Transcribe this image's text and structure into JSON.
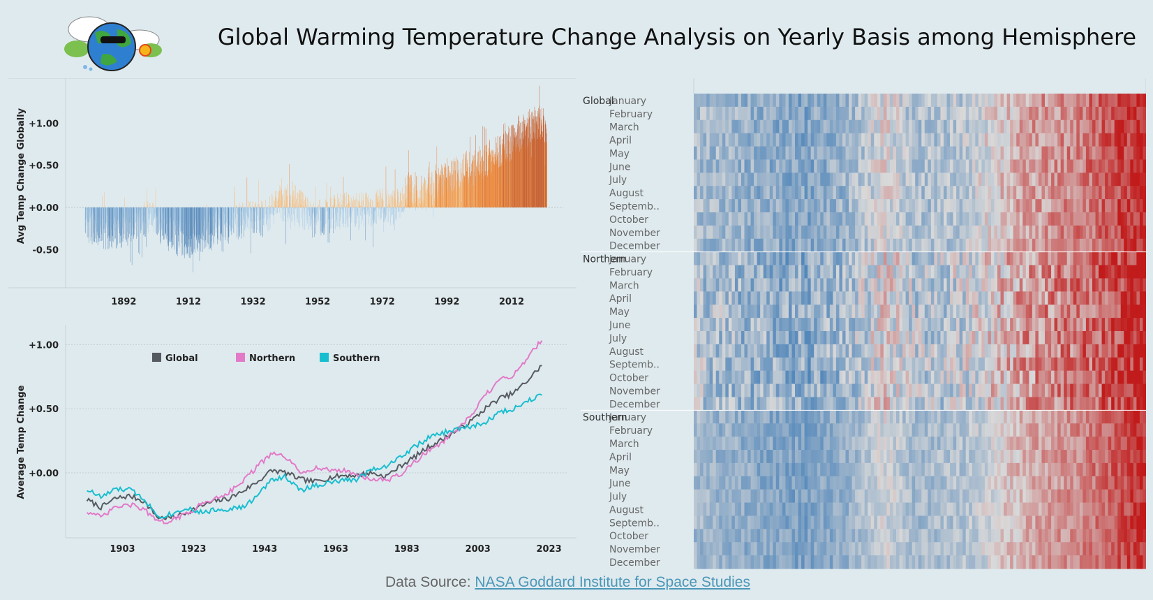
{
  "page": {
    "title": "Global Warming Temperature Change Analysis on Yearly Basis among Hemisphere",
    "footer_prefix": "Data Source: ",
    "footer_link": "NASA Goddard Institute for Space Studies"
  },
  "logo": {
    "icon": "earth-with-sunglasses-icon"
  },
  "chart_data": [
    {
      "id": "global-bars",
      "type": "bar",
      "ylabel": "Avg Temp Change Globally",
      "xlabel": "",
      "xlim": [
        1874,
        2028
      ],
      "ylim": [
        -0.92,
        1.45
      ],
      "yticks": [
        -0.5,
        0.0,
        0.5,
        1.0
      ],
      "ytick_labels": [
        "-0.50",
        "+0.00",
        "+0.50",
        "+1.00"
      ],
      "xticks": [
        1892,
        1912,
        1932,
        1952,
        1972,
        1992,
        2012
      ],
      "xtick_labels": [
        "1892",
        "1912",
        "1932",
        "1952",
        "1972",
        "1992",
        "2012"
      ],
      "start_year": 1880,
      "end_year": 2022,
      "points_per_year": 12,
      "anchor_years": [
        1880,
        1885,
        1890,
        1895,
        1900,
        1905,
        1910,
        1915,
        1920,
        1925,
        1930,
        1935,
        1940,
        1945,
        1950,
        1955,
        1960,
        1965,
        1970,
        1975,
        1980,
        1985,
        1990,
        1995,
        2000,
        2005,
        2010,
        2015,
        2020,
        2022
      ],
      "anchor_values": [
        -0.18,
        -0.28,
        -0.32,
        -0.22,
        -0.12,
        -0.3,
        -0.4,
        -0.35,
        -0.25,
        -0.2,
        -0.12,
        -0.15,
        0.05,
        0.05,
        -0.15,
        -0.1,
        -0.03,
        -0.05,
        0.0,
        0.0,
        0.2,
        0.15,
        0.35,
        0.4,
        0.45,
        0.6,
        0.7,
        0.9,
        1.0,
        0.95
      ],
      "colors": {
        "cold": "#4a7fb5",
        "cool": "#9fc5e3",
        "warm": "#f9b870",
        "hot": "#ee7d25",
        "hottest": "#c44d14"
      }
    },
    {
      "id": "hemisphere-lines",
      "type": "line",
      "ylabel": "Average Temp Change",
      "xlabel": "",
      "xlim": [
        1887,
        2028
      ],
      "ylim": [
        -0.48,
        1.1
      ],
      "yticks": [
        0.0,
        0.5,
        1.0
      ],
      "ytick_labels": [
        "+0.00",
        "+0.50",
        "+1.00"
      ],
      "xticks": [
        1903,
        1923,
        1943,
        1963,
        1983,
        2003,
        2023
      ],
      "xtick_labels": [
        "1903",
        "1923",
        "1943",
        "1963",
        "1983",
        "2003",
        "2023"
      ],
      "legend_position": "top-left",
      "series": [
        {
          "name": "Global",
          "color": "#555a61",
          "x": [
            1893,
            1897,
            1901,
            1905,
            1909,
            1913,
            1917,
            1921,
            1925,
            1929,
            1933,
            1937,
            1941,
            1945,
            1949,
            1953,
            1957,
            1961,
            1965,
            1969,
            1973,
            1977,
            1981,
            1985,
            1989,
            1993,
            1997,
            2001,
            2005,
            2009,
            2013,
            2017,
            2021
          ],
          "values": [
            -0.21,
            -0.27,
            -0.2,
            -0.18,
            -0.22,
            -0.35,
            -0.35,
            -0.31,
            -0.26,
            -0.22,
            -0.2,
            -0.14,
            -0.07,
            0.02,
            0.0,
            -0.05,
            -0.07,
            -0.04,
            -0.02,
            -0.02,
            0.0,
            -0.03,
            0.05,
            0.12,
            0.2,
            0.26,
            0.33,
            0.4,
            0.5,
            0.58,
            0.62,
            0.72,
            0.84
          ]
        },
        {
          "name": "Northern",
          "color": "#e27ac8",
          "x": [
            1893,
            1897,
            1901,
            1905,
            1909,
            1913,
            1917,
            1921,
            1925,
            1929,
            1933,
            1937,
            1941,
            1945,
            1949,
            1953,
            1957,
            1961,
            1965,
            1969,
            1973,
            1977,
            1981,
            1985,
            1989,
            1993,
            1997,
            2001,
            2005,
            2009,
            2013,
            2017,
            2021
          ],
          "values": [
            -0.3,
            -0.35,
            -0.27,
            -0.25,
            -0.28,
            -0.39,
            -0.37,
            -0.32,
            -0.25,
            -0.2,
            -0.15,
            -0.06,
            0.05,
            0.15,
            0.12,
            0.0,
            0.04,
            0.02,
            0.02,
            -0.01,
            -0.05,
            -0.06,
            -0.02,
            0.08,
            0.17,
            0.24,
            0.33,
            0.44,
            0.6,
            0.72,
            0.76,
            0.9,
            1.04
          ]
        },
        {
          "name": "Southern",
          "color": "#17becf",
          "x": [
            1893,
            1897,
            1901,
            1905,
            1909,
            1913,
            1917,
            1921,
            1925,
            1929,
            1933,
            1937,
            1941,
            1945,
            1949,
            1953,
            1957,
            1961,
            1965,
            1969,
            1973,
            1977,
            1981,
            1985,
            1989,
            1993,
            1997,
            2001,
            2005,
            2009,
            2013,
            2017,
            2021
          ],
          "values": [
            -0.13,
            -0.19,
            -0.13,
            -0.13,
            -0.2,
            -0.34,
            -0.32,
            -0.27,
            -0.31,
            -0.29,
            -0.28,
            -0.27,
            -0.18,
            -0.05,
            -0.03,
            -0.14,
            -0.1,
            -0.08,
            -0.06,
            -0.05,
            0.03,
            0.05,
            0.12,
            0.2,
            0.27,
            0.31,
            0.34,
            0.36,
            0.39,
            0.47,
            0.5,
            0.56,
            0.62
          ]
        }
      ]
    },
    {
      "id": "monthly-heatmap",
      "type": "heatmap",
      "row_groups": [
        {
          "label": "Global",
          "warm_bias": 0.0,
          "noise": 0.28
        },
        {
          "label": "Northern",
          "warm_bias": 0.05,
          "noise": 0.4
        },
        {
          "label": "Southern",
          "warm_bias": -0.05,
          "noise": 0.22
        }
      ],
      "months": [
        "January",
        "February",
        "March",
        "April",
        "May",
        "June",
        "July",
        "August",
        "Septemb..",
        "October",
        "November",
        "December"
      ],
      "start_year": 1880,
      "end_year": 2022,
      "color_scale": {
        "cold": "#3d7ab5",
        "neutral": "#d9d9d9",
        "hot": "#c11b1b"
      }
    }
  ]
}
